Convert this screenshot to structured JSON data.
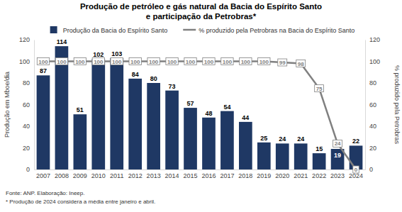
{
  "chart_data": {
    "type": "bar",
    "title": "Produção de petróleo e gás natural da Bacia do Espírito Santo\ne participação da Petrobras*",
    "annotations": [
      "Fonte: ANP. Elaboração: Ineep.",
      "* Produção de 2024 considera a média entre janeiro e abril."
    ],
    "categories": [
      "2007",
      "2008",
      "2009",
      "2010",
      "2011",
      "2012",
      "2013",
      "2014",
      "2015",
      "2016",
      "2017",
      "2018",
      "2019",
      "2020",
      "2021",
      "2022",
      "2023",
      "2024"
    ],
    "series": [
      {
        "name": "Produção da Bacia do Espírito Santo",
        "type": "bar",
        "color": "#1f3864",
        "values": [
          87,
          114,
          51,
          102,
          103,
          84,
          80,
          73,
          57,
          48,
          54,
          44,
          25,
          24,
          24,
          15,
          19,
          22
        ]
      },
      {
        "name": "% produzido pela Petrobras na Bacia do Espírito Santo",
        "type": "line",
        "color": "#808080",
        "axis": "y2",
        "values": [
          100,
          100,
          100,
          100,
          100,
          100,
          100,
          100,
          100,
          100,
          100,
          100,
          100,
          99,
          98,
          75,
          24,
          0
        ]
      }
    ],
    "y_label": "Produção em Mboe/dia",
    "y2_label": "% produzido pela Petrobras",
    "ylim": [
      0,
      120
    ],
    "yticks": [
      0,
      20,
      40,
      60,
      80,
      100,
      120
    ],
    "y2lim": [
      0,
      120
    ],
    "y2ticks": [
      0,
      20,
      40,
      60,
      80,
      100,
      120
    ],
    "grid": false,
    "legend": "top",
    "data_labels": true
  }
}
